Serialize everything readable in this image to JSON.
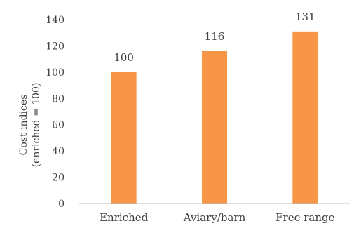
{
  "chart_data": {
    "type": "bar",
    "categories": [
      "Enriched",
      "Aviary/barn",
      "Free range"
    ],
    "values": [
      100,
      116,
      131
    ],
    "data_labels": [
      "100",
      "116",
      "131"
    ],
    "ylabel_lines": [
      "Cost indices",
      "(enriched = 100)"
    ],
    "ylim": [
      0,
      140
    ],
    "y_ticks": [
      0,
      20,
      40,
      60,
      80,
      100,
      120,
      140
    ],
    "grid": false,
    "legend": "none",
    "bar_color": "#F79646",
    "axis_color": "#bfbfbf"
  }
}
